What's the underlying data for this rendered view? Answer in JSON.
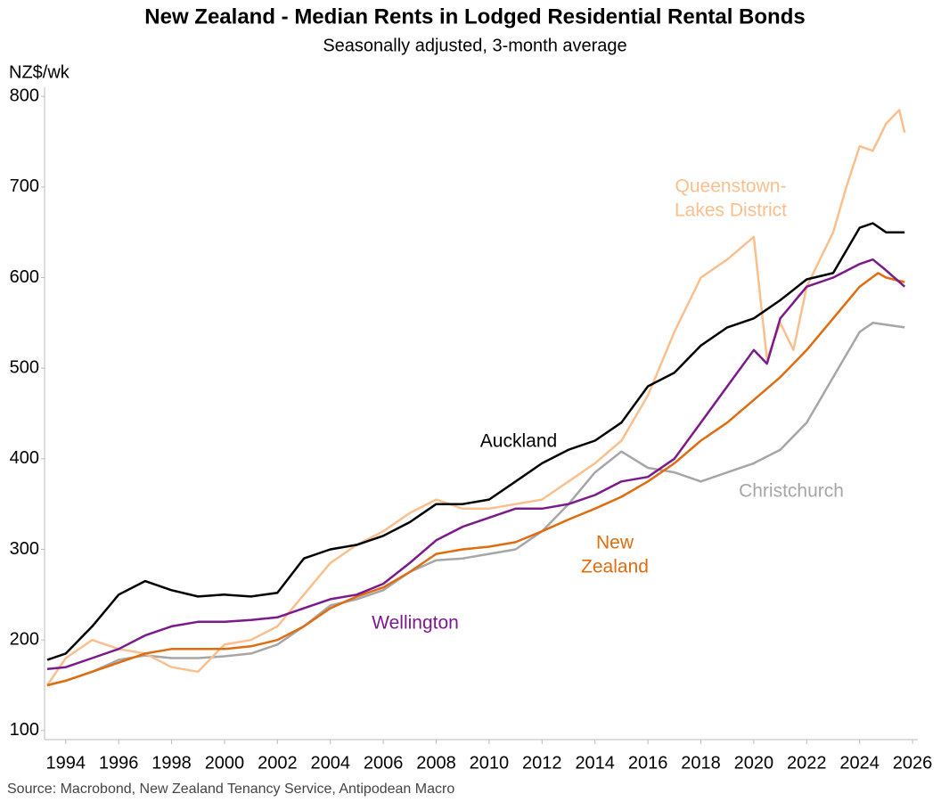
{
  "chart_data": {
    "type": "line",
    "title": "New Zealand - Median Rents in Lodged Residential Rental Bonds",
    "subtitle": "Seasonally adjusted, 3-month average",
    "y_label": "NZ$/wk",
    "source": "Source: Macrobond, New Zealand Tenancy Service, Antipodean Macro",
    "xlim": [
      1993.2,
      2026.2
    ],
    "xticks": [
      1994,
      1996,
      1998,
      2000,
      2002,
      2004,
      2006,
      2008,
      2010,
      2012,
      2014,
      2016,
      2018,
      2020,
      2022,
      2024,
      2026
    ],
    "ylim": [
      90,
      810
    ],
    "yticks": [
      100,
      200,
      300,
      400,
      500,
      600,
      700,
      800
    ],
    "series": [
      {
        "name": [
          "Christchurch"
        ],
        "color": "#a6a6a6",
        "x": [
          1993.3,
          1994,
          1995,
          1996,
          1997,
          1998,
          1999,
          2000,
          2001,
          2002,
          2003,
          2004,
          2005,
          2006,
          2007,
          2008,
          2009,
          2010,
          2011,
          2012,
          2013,
          2014,
          2015,
          2016,
          2017,
          2018,
          2019,
          2020,
          2021,
          2022,
          2023,
          2024,
          2024.5,
          2025,
          2025.7
        ],
        "values": [
          150,
          155,
          165,
          178,
          183,
          180,
          180,
          182,
          185,
          195,
          215,
          238,
          245,
          255,
          275,
          288,
          290,
          295,
          300,
          320,
          350,
          385,
          408,
          390,
          385,
          375,
          385,
          395,
          410,
          440,
          490,
          540,
          550,
          548,
          545
        ]
      },
      {
        "name": [
          "Queenstown-",
          "Lakes District"
        ],
        "color": "#fbbf8e",
        "x": [
          1993.3,
          1994,
          1995,
          1996,
          1997,
          1998,
          1999,
          2000,
          2001,
          2002,
          2003,
          2004,
          2005,
          2006,
          2007,
          2008,
          2009,
          2010,
          2011,
          2012,
          2013,
          2014,
          2015,
          2016,
          2017,
          2018,
          2019,
          2020,
          2020.5,
          2021,
          2021.5,
          2022,
          2023,
          2023.5,
          2024,
          2024.5,
          2025,
          2025.5,
          2025.7
        ],
        "values": [
          150,
          180,
          200,
          190,
          185,
          170,
          165,
          195,
          200,
          215,
          250,
          285,
          305,
          320,
          340,
          355,
          345,
          345,
          350,
          355,
          375,
          395,
          420,
          470,
          540,
          600,
          620,
          645,
          510,
          550,
          520,
          590,
          650,
          700,
          745,
          740,
          770,
          785,
          760
        ]
      },
      {
        "name": [
          "New",
          "Zealand"
        ],
        "color": "#e06c10",
        "x": [
          1993.3,
          1994,
          1995,
          1996,
          1997,
          1998,
          1999,
          2000,
          2001,
          2002,
          2003,
          2004,
          2005,
          2006,
          2007,
          2008,
          2009,
          2010,
          2011,
          2012,
          2013,
          2014,
          2015,
          2016,
          2017,
          2018,
          2019,
          2020,
          2021,
          2022,
          2023,
          2024,
          2024.7,
          2025,
          2025.7
        ],
        "values": [
          150,
          155,
          165,
          175,
          185,
          190,
          190,
          190,
          193,
          200,
          215,
          235,
          248,
          258,
          275,
          295,
          300,
          303,
          308,
          320,
          333,
          345,
          358,
          375,
          395,
          420,
          440,
          465,
          490,
          520,
          555,
          590,
          605,
          600,
          595
        ]
      },
      {
        "name": [
          "Wellington"
        ],
        "color": "#7b1a8a",
        "x": [
          1993.3,
          1994,
          1995,
          1996,
          1997,
          1998,
          1999,
          2000,
          2001,
          2002,
          2003,
          2004,
          2005,
          2006,
          2007,
          2008,
          2009,
          2010,
          2011,
          2012,
          2013,
          2014,
          2015,
          2016,
          2017,
          2018,
          2019,
          2020,
          2020.5,
          2021,
          2022,
          2023,
          2024,
          2024.5,
          2025,
          2025.7
        ],
        "values": [
          168,
          170,
          180,
          190,
          205,
          215,
          220,
          220,
          222,
          225,
          235,
          245,
          250,
          262,
          285,
          310,
          325,
          335,
          345,
          345,
          350,
          360,
          375,
          380,
          400,
          440,
          480,
          520,
          505,
          555,
          590,
          600,
          615,
          620,
          608,
          590
        ]
      },
      {
        "name": [
          "Auckland"
        ],
        "color": "#000000",
        "x": [
          1993.3,
          1994,
          1995,
          1996,
          1997,
          1998,
          1999,
          2000,
          2001,
          2002,
          2003,
          2004,
          2005,
          2006,
          2007,
          2008,
          2009,
          2010,
          2011,
          2012,
          2013,
          2014,
          2015,
          2016,
          2017,
          2018,
          2019,
          2020,
          2021,
          2022,
          2023,
          2024,
          2024.5,
          2025,
          2025.7
        ],
        "values": [
          178,
          185,
          215,
          250,
          265,
          255,
          248,
          250,
          248,
          252,
          290,
          300,
          305,
          315,
          330,
          350,
          350,
          355,
          375,
          395,
          410,
          420,
          440,
          480,
          495,
          525,
          545,
          555,
          575,
          598,
          605,
          655,
          660,
          650,
          650
        ]
      }
    ]
  }
}
